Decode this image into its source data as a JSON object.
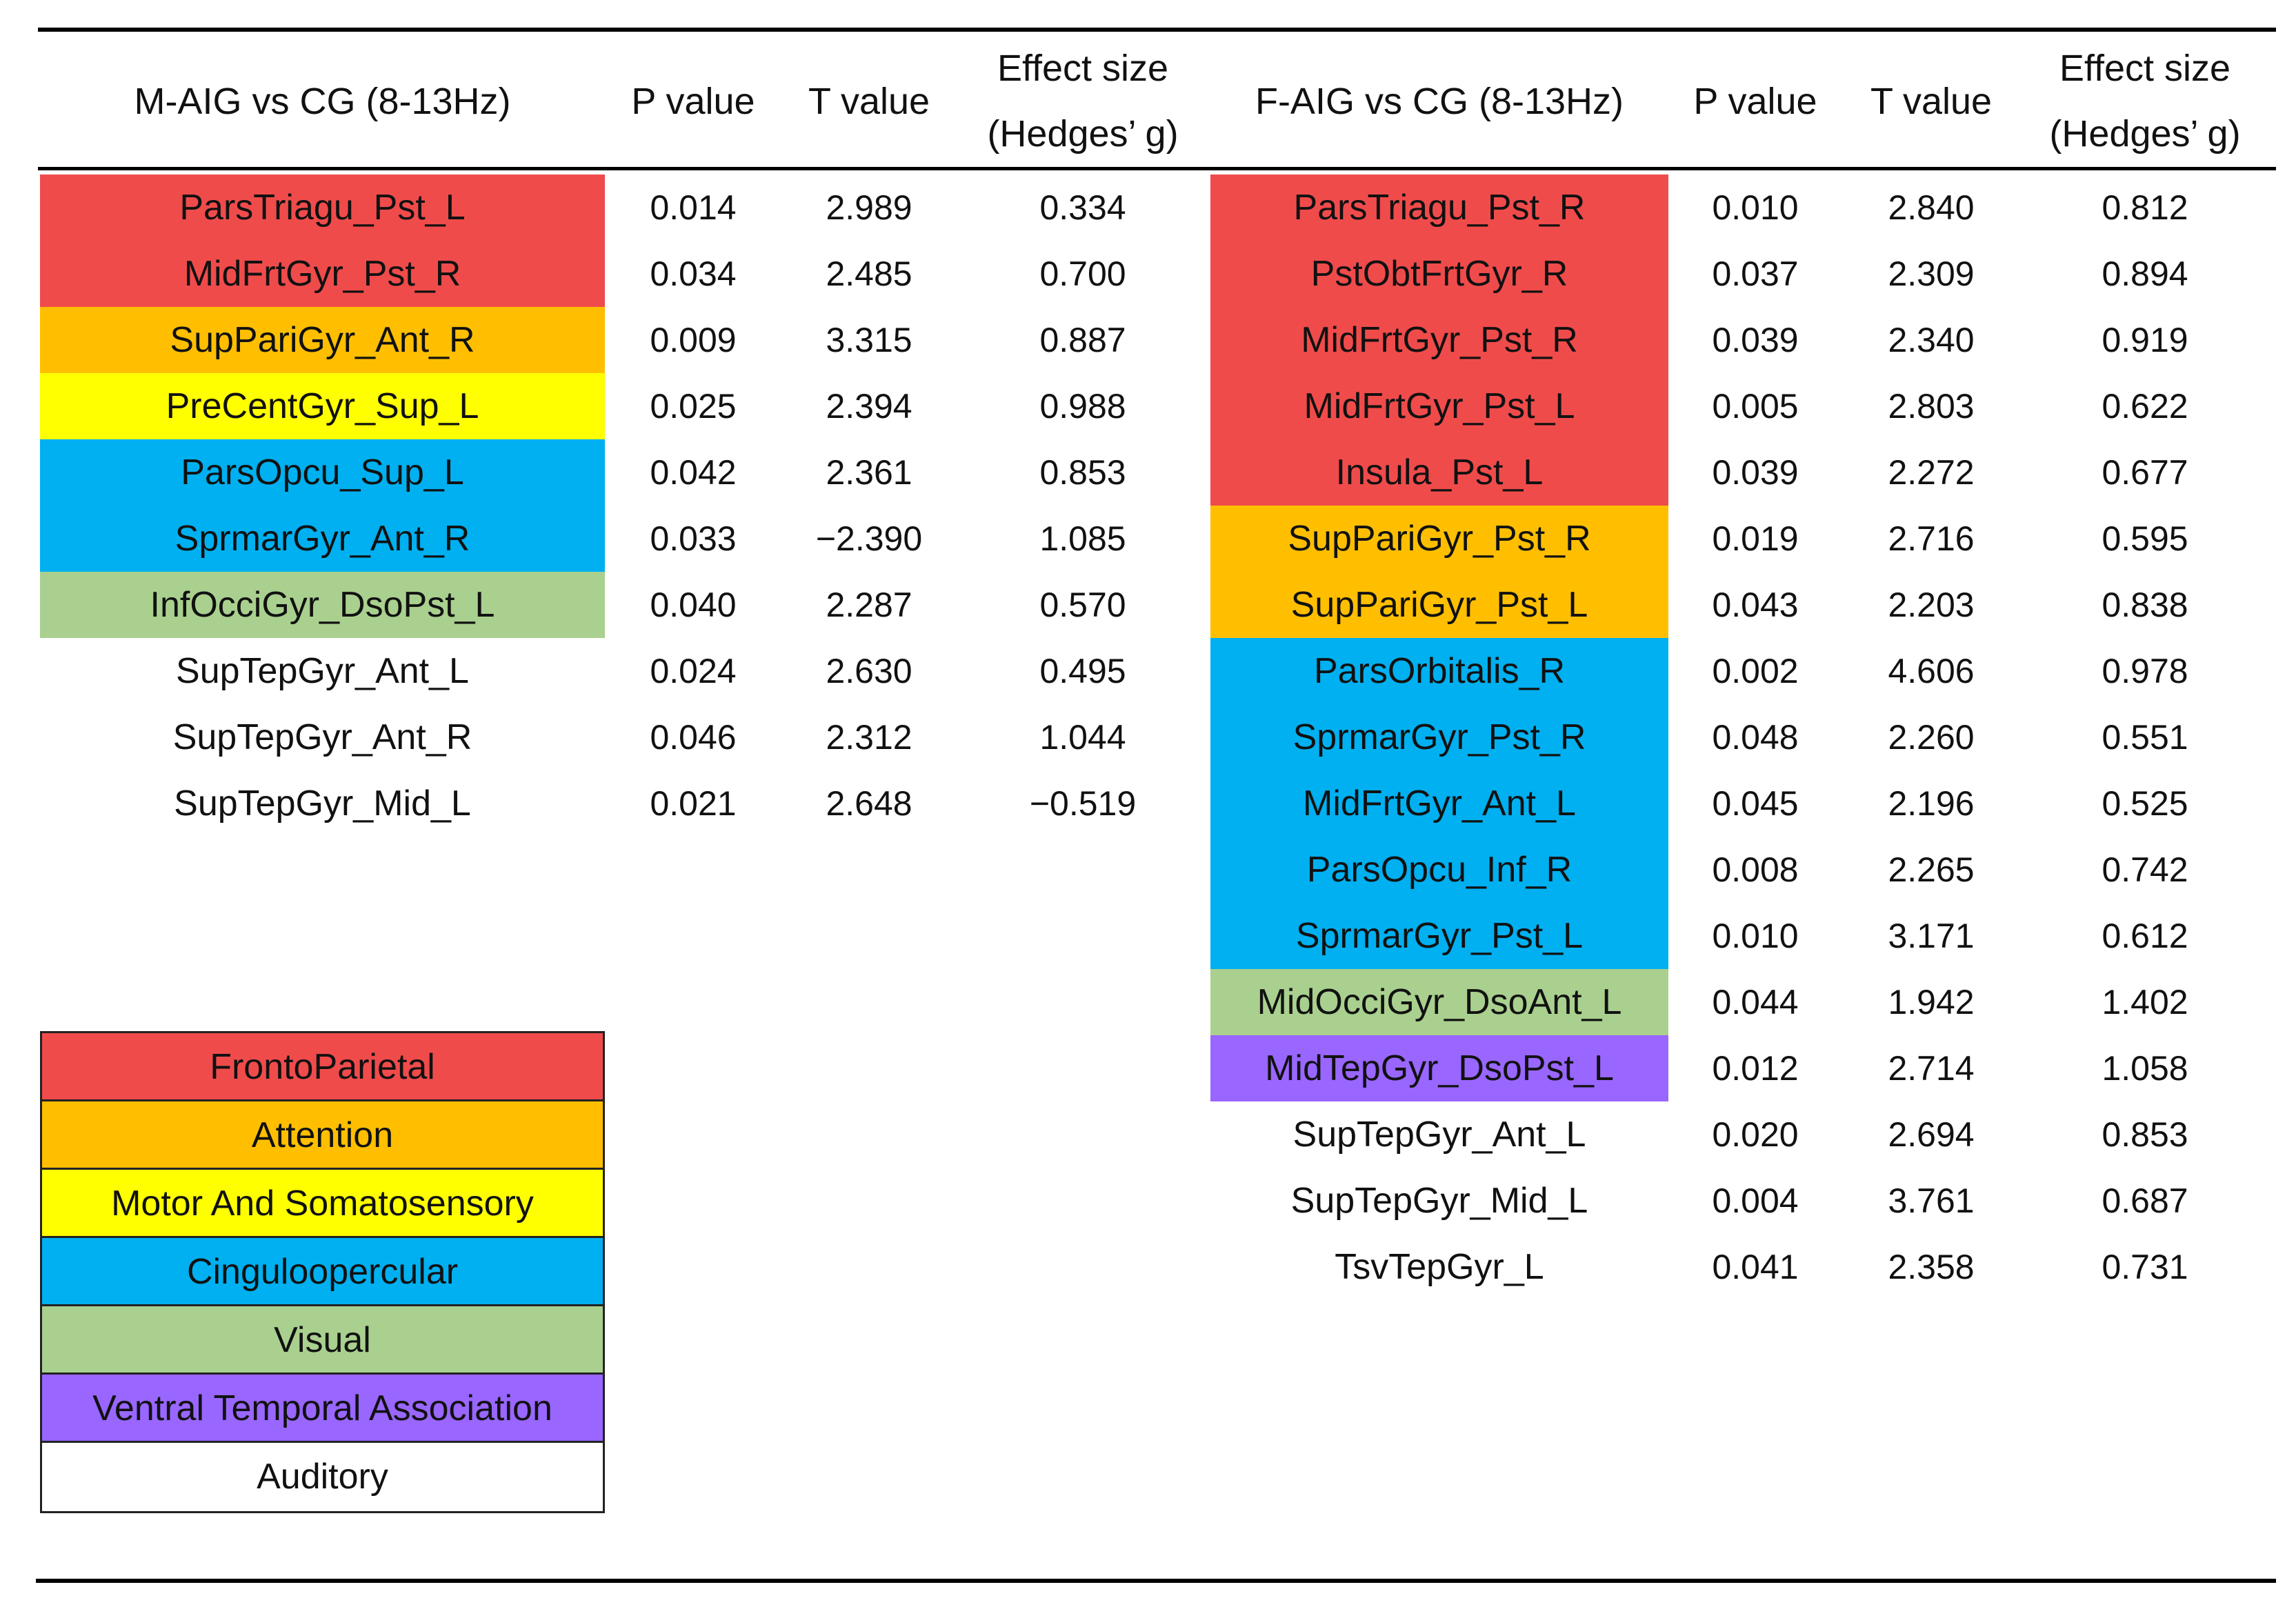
{
  "left_table": {
    "headers": {
      "region": "M-AIG vs CG (8-13Hz)",
      "p": "P value",
      "t": "T value",
      "effect_line1": "Effect size",
      "effect_line2": "(Hedges’ g)"
    },
    "rows": [
      {
        "region": "ParsTriagu_Pst_L",
        "p": "0.014",
        "t": "2.989",
        "g": "0.334",
        "network": "FrontoParietal",
        "color": "#f04b4b"
      },
      {
        "region": "MidFrtGyr_Pst_R",
        "p": "0.034",
        "t": "2.485",
        "g": "0.700",
        "network": "FrontoParietal",
        "color": "#f04b4b"
      },
      {
        "region": "SupPariGyr_Ant_R",
        "p": "0.009",
        "t": "3.315",
        "g": "0.887",
        "network": "Attention",
        "color": "#ffbf00"
      },
      {
        "region": "PreCentGyr_Sup_L",
        "p": "0.025",
        "t": "2.394",
        "g": "0.988",
        "network": "Motor And Somatosensory",
        "color": "#ffff00"
      },
      {
        "region": "ParsOpcu_Sup_L",
        "p": "0.042",
        "t": "2.361",
        "g": "0.853",
        "network": "Cinguloopercular",
        "color": "#00b0f0"
      },
      {
        "region": "SprmarGyr_Ant_R",
        "p": "0.033",
        "t": "−2.390",
        "g": "1.085",
        "network": "Cinguloopercular",
        "color": "#00b0f0"
      },
      {
        "region": "InfOcciGyr_DsoPst_L",
        "p": "0.040",
        "t": "2.287",
        "g": "0.570",
        "network": "Visual",
        "color": "#a9d08e"
      },
      {
        "region": "SupTepGyr_Ant_L",
        "p": "0.024",
        "t": "2.630",
        "g": "0.495",
        "network": "Auditory",
        "color": "#ffffff"
      },
      {
        "region": "SupTepGyr_Ant_R",
        "p": "0.046",
        "t": "2.312",
        "g": "1.044",
        "network": "Auditory",
        "color": "#ffffff"
      },
      {
        "region": "SupTepGyr_Mid_L",
        "p": "0.021",
        "t": "2.648",
        "g": "−0.519",
        "network": "Auditory",
        "color": "#ffffff"
      }
    ]
  },
  "right_table": {
    "headers": {
      "region": "F-AIG vs CG (8-13Hz)",
      "p": "P value",
      "t": "T value",
      "effect_line1": "Effect size",
      "effect_line2": "(Hedges’ g)"
    },
    "rows": [
      {
        "region": "ParsTriagu_Pst_R",
        "p": "0.010",
        "t": "2.840",
        "g": "0.812",
        "network": "FrontoParietal",
        "color": "#f04b4b"
      },
      {
        "region": "PstObtFrtGyr_R",
        "p": "0.037",
        "t": "2.309",
        "g": "0.894",
        "network": "FrontoParietal",
        "color": "#f04b4b"
      },
      {
        "region": "MidFrtGyr_Pst_R",
        "p": "0.039",
        "t": "2.340",
        "g": "0.919",
        "network": "FrontoParietal",
        "color": "#f04b4b"
      },
      {
        "region": "MidFrtGyr_Pst_L",
        "p": "0.005",
        "t": "2.803",
        "g": "0.622",
        "network": "FrontoParietal",
        "color": "#f04b4b"
      },
      {
        "region": "Insula_Pst_L",
        "p": "0.039",
        "t": "2.272",
        "g": "0.677",
        "network": "FrontoParietal",
        "color": "#f04b4b"
      },
      {
        "region": "SupPariGyr_Pst_R",
        "p": "0.019",
        "t": "2.716",
        "g": "0.595",
        "network": "Attention",
        "color": "#ffbf00"
      },
      {
        "region": "SupPariGyr_Pst_L",
        "p": "0.043",
        "t": "2.203",
        "g": "0.838",
        "network": "Attention",
        "color": "#ffbf00"
      },
      {
        "region": "ParsOrbitalis_R",
        "p": "0.002",
        "t": "4.606",
        "g": "0.978",
        "network": "Cinguloopercular",
        "color": "#00b0f0"
      },
      {
        "region": "SprmarGyr_Pst_R",
        "p": "0.048",
        "t": "2.260",
        "g": "0.551",
        "network": "Cinguloopercular",
        "color": "#00b0f0"
      },
      {
        "region": "MidFrtGyr_Ant_L",
        "p": "0.045",
        "t": "2.196",
        "g": "0.525",
        "network": "Cinguloopercular",
        "color": "#00b0f0"
      },
      {
        "region": "ParsOpcu_Inf_R",
        "p": "0.008",
        "t": "2.265",
        "g": "0.742",
        "network": "Cinguloopercular",
        "color": "#00b0f0"
      },
      {
        "region": "SprmarGyr_Pst_L",
        "p": "0.010",
        "t": "3.171",
        "g": "0.612",
        "network": "Cinguloopercular",
        "color": "#00b0f0"
      },
      {
        "region": "MidOcciGyr_DsoAnt_L",
        "p": "0.044",
        "t": "1.942",
        "g": "1.402",
        "network": "Visual",
        "color": "#a9d08e"
      },
      {
        "region": "MidTepGyr_DsoPst_L",
        "p": "0.012",
        "t": "2.714",
        "g": "1.058",
        "network": "Ventral Temporal Association",
        "color": "#9966ff"
      },
      {
        "region": "SupTepGyr_Ant_L",
        "p": "0.020",
        "t": "2.694",
        "g": "0.853",
        "network": "Auditory",
        "color": "#ffffff"
      },
      {
        "region": "SupTepGyr_Mid_L",
        "p": "0.004",
        "t": "3.761",
        "g": "0.687",
        "network": "Auditory",
        "color": "#ffffff"
      },
      {
        "region": "TsvTepGyr_L",
        "p": "0.041",
        "t": "2.358",
        "g": "0.731",
        "network": "Auditory",
        "color": "#ffffff"
      }
    ]
  },
  "legend": [
    {
      "label": "FrontoParietal",
      "color": "#f04b4b"
    },
    {
      "label": "Attention",
      "color": "#ffbf00"
    },
    {
      "label": "Motor And Somatosensory",
      "color": "#ffff00"
    },
    {
      "label": "Cinguloopercular",
      "color": "#00b0f0"
    },
    {
      "label": "Visual",
      "color": "#a9d08e"
    },
    {
      "label": "Ventral Temporal Association",
      "color": "#9966ff"
    },
    {
      "label": "Auditory",
      "color": "#ffffff"
    }
  ]
}
